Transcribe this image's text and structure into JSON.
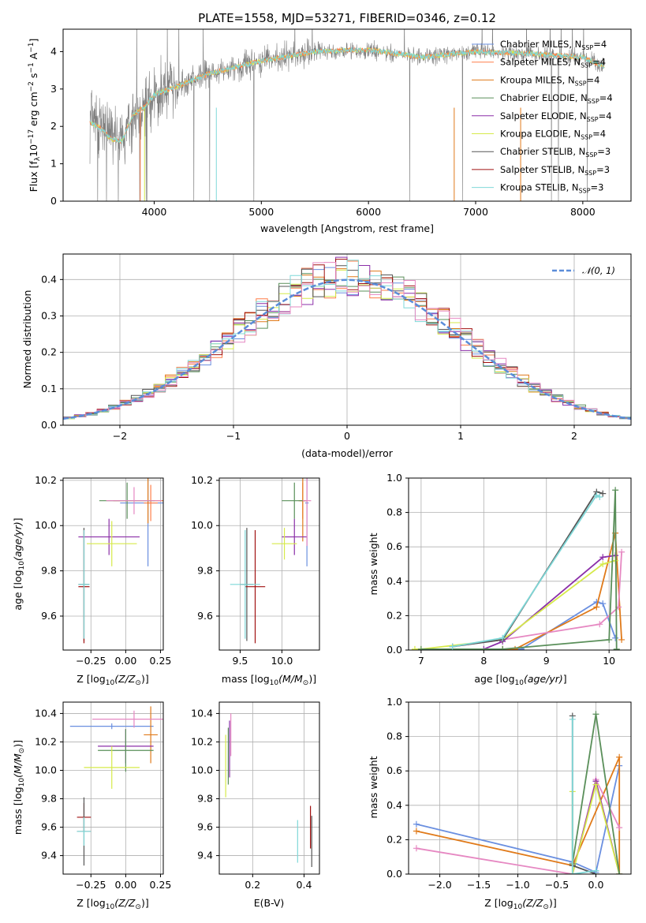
{
  "title": "PLATE=1558, MJD=53271, FIBERID=0346, z=0.12",
  "colors": {
    "chabrier_miles": "#6a8fe0",
    "salpeter_miles": "#ff7f4a",
    "kroupa_miles": "#e07a1a",
    "chabrier_elodie": "#5a8f5a",
    "salpeter_elodie": "#8b2fa8",
    "kroupa_elodie": "#d6ea4a",
    "chabrier_stelib": "#555555",
    "salpeter_stelib": "#a01010",
    "kroupa_stelib": "#7fd8d8",
    "pink": "#e688c2",
    "data_grey": "#808080",
    "normal_curve": "#5b8dd9"
  },
  "legend": [
    {
      "label": "Chabrier MILES, N",
      "sub": "SSP",
      "tail": "=4",
      "color": "chabrier_miles"
    },
    {
      "label": "Salpeter MILES, N",
      "sub": "SSP",
      "tail": "=4",
      "color": "salpeter_miles"
    },
    {
      "label": "Kroupa MILES, N",
      "sub": "SSP",
      "tail": "=4",
      "color": "kroupa_miles"
    },
    {
      "label": "Chabrier ELODIE, N",
      "sub": "SSP",
      "tail": "=4",
      "color": "chabrier_elodie"
    },
    {
      "label": "Salpeter ELODIE, N",
      "sub": "SSP",
      "tail": "=4",
      "color": "salpeter_elodie"
    },
    {
      "label": "Kroupa ELODIE, N",
      "sub": "SSP",
      "tail": "=4",
      "color": "kroupa_elodie"
    },
    {
      "label": "Chabrier STELIB, N",
      "sub": "SSP",
      "tail": "=3",
      "color": "chabrier_stelib"
    },
    {
      "label": "Salpeter STELIB, N",
      "sub": "SSP",
      "tail": "=3",
      "color": "salpeter_stelib"
    },
    {
      "label": "Kroupa STELIB, N",
      "sub": "SSP",
      "tail": "=3",
      "color": "kroupa_stelib"
    }
  ],
  "chart_data": [
    {
      "id": "spectrum",
      "type": "line",
      "xlabel": "wavelength [Angstrom, rest frame]",
      "ylabel_main": "Flux [f",
      "ylabel_sub": "λ",
      "ylabel_rest": "10",
      "ylabel_sup": "−17",
      "ylabel_units": "erg cm",
      "xlim": [
        3150,
        8450
      ],
      "ylim": [
        0,
        4.6
      ],
      "xticks": [
        4000,
        5000,
        6000,
        7000,
        8000
      ],
      "yticks": [
        0,
        1,
        2,
        3,
        4
      ],
      "continuum": {
        "x": [
          3400,
          3500,
          3600,
          3700,
          3800,
          3900,
          4000,
          4200,
          4500,
          5000,
          5500,
          6000,
          6500,
          7000,
          7500,
          8000,
          8200
        ],
        "y": [
          2.1,
          1.95,
          1.65,
          1.6,
          2.3,
          2.5,
          2.85,
          3.05,
          3.4,
          3.75,
          4.0,
          4.05,
          3.85,
          4.0,
          3.95,
          3.85,
          3.6
        ]
      }
    },
    {
      "id": "residuals",
      "type": "step",
      "xlabel": "(data-model)/error",
      "ylabel": "Normed distribution",
      "legend": "𝒩(0, 1)",
      "xlim": [
        -2.5,
        2.5
      ],
      "ylim": [
        0,
        0.47
      ],
      "xticks": [
        -2,
        -1,
        0,
        1,
        2
      ],
      "yticks": [
        0.0,
        0.1,
        0.2,
        0.3,
        0.4
      ],
      "bin_width": 0.1
    },
    {
      "id": "age_vs_Z",
      "type": "errorbar",
      "xlabel": "Z [log",
      "ylabel": "age  [log",
      "xlim": [
        -0.45,
        0.27
      ],
      "ylim": [
        9.45,
        10.21
      ],
      "xticks": [
        -0.25,
        0.0,
        0.25
      ],
      "yticks": [
        9.6,
        9.8,
        10.0,
        10.2
      ],
      "points": [
        {
          "color": "chabrier_miles",
          "x": 0.16,
          "y": 10.1,
          "xerr": 0.2,
          "yerr": 0.28
        },
        {
          "color": "salpeter_miles",
          "x": 0.18,
          "y": 10.1,
          "xerr": 0.05,
          "yerr": 0.08
        },
        {
          "color": "kroupa_miles",
          "x": 0.16,
          "y": 10.11,
          "xerr": 0.25,
          "yerr": 0.1
        },
        {
          "color": "chabrier_elodie",
          "x": 0.01,
          "y": 10.11,
          "xerr": 0.2,
          "yerr": 0.08
        },
        {
          "color": "salpeter_elodie",
          "x": -0.12,
          "y": 9.95,
          "xerr": 0.22,
          "yerr": 0.08
        },
        {
          "color": "kroupa_elodie",
          "x": -0.1,
          "y": 9.92,
          "xerr": 0.18,
          "yerr": 0.1
        },
        {
          "color": "chabrier_stelib",
          "x": -0.3,
          "y": 9.74,
          "xerr": 0.04,
          "yerr": 0.25
        },
        {
          "color": "salpeter_stelib",
          "x": -0.3,
          "y": 9.73,
          "xerr": 0.04,
          "yerr": 0.25
        },
        {
          "color": "kroupa_stelib",
          "x": -0.3,
          "y": 9.74,
          "xerr": 0.04,
          "yerr": 0.24
        },
        {
          "color": "pink",
          "x": 0.06,
          "y": 10.11,
          "xerr": 0.2,
          "yerr": 0.06
        }
      ]
    },
    {
      "id": "age_vs_mass",
      "type": "errorbar",
      "xlabel": "mass [log",
      "ylabel": "",
      "xlim": [
        9.25,
        10.45
      ],
      "ylim": [
        9.45,
        10.21
      ],
      "xticks": [
        9.5,
        10.0
      ],
      "yticks": [
        9.6,
        9.8,
        10.0,
        10.2
      ],
      "points": [
        {
          "color": "chabrier_miles",
          "x": 10.3,
          "y": 10.1,
          "xerr": 0.02,
          "yerr": 0.28
        },
        {
          "color": "salpeter_miles",
          "x": 10.25,
          "y": 10.11,
          "xerr": 0.03,
          "yerr": 0.08
        },
        {
          "color": "kroupa_miles",
          "x": 10.25,
          "y": 10.11,
          "xerr": 0.05,
          "yerr": 0.18
        },
        {
          "color": "chabrier_elodie",
          "x": 10.15,
          "y": 10.11,
          "xerr": 0.15,
          "yerr": 0.08
        },
        {
          "color": "salpeter_elodie",
          "x": 10.15,
          "y": 9.95,
          "xerr": 0.15,
          "yerr": 0.08
        },
        {
          "color": "kroupa_elodie",
          "x": 10.03,
          "y": 9.92,
          "xerr": 0.15,
          "yerr": 0.07
        },
        {
          "color": "chabrier_stelib",
          "x": 9.58,
          "y": 9.74,
          "xerr": 0.08,
          "yerr": 0.25
        },
        {
          "color": "salpeter_stelib",
          "x": 9.68,
          "y": 9.73,
          "xerr": 0.12,
          "yerr": 0.25
        },
        {
          "color": "kroupa_stelib",
          "x": 9.56,
          "y": 9.74,
          "xerr": 0.18,
          "yerr": 0.24
        },
        {
          "color": "pink",
          "x": 10.3,
          "y": 10.11,
          "xerr": 0.05,
          "yerr": 0.2
        }
      ]
    },
    {
      "id": "massweight_vs_age",
      "type": "line",
      "xlabel": "age  [log",
      "ylabel": "mass weight",
      "xlim": [
        6.8,
        10.35
      ],
      "ylim": [
        0,
        1.0
      ],
      "xticks": [
        7,
        8,
        9,
        10
      ],
      "yticks": [
        0.0,
        0.2,
        0.4,
        0.6,
        0.8,
        1.0
      ],
      "series": [
        {
          "color": "chabrier_miles",
          "x": [
            8.3,
            8.6,
            9.8,
            9.9,
            10.1
          ],
          "y": [
            0.005,
            0.005,
            0.28,
            0.27,
            0.07
          ]
        },
        {
          "color": "kroupa_miles",
          "x": [
            8.3,
            8.5,
            9.8,
            10.1,
            10.2
          ],
          "y": [
            0.005,
            0.005,
            0.25,
            0.68,
            0.06
          ]
        },
        {
          "color": "pink",
          "x": [
            7.5,
            8.3,
            9.85,
            10.15,
            10.2
          ],
          "y": [
            0.02,
            0.06,
            0.15,
            0.25,
            0.57
          ]
        },
        {
          "color": "salpeter_elodie",
          "x": [
            8.0,
            8.3,
            9.9,
            10.1
          ],
          "y": [
            0.005,
            0.05,
            0.54,
            0.55
          ]
        },
        {
          "color": "kroupa_elodie",
          "x": [
            6.9,
            7.0,
            8.3,
            9.9,
            10.1
          ],
          "y": [
            0.005,
            0.005,
            0.06,
            0.5,
            0.52
          ]
        },
        {
          "color": "chabrier_elodie",
          "x": [
            7.0,
            8.3,
            10.0,
            10.1,
            10.12
          ],
          "y": [
            0.005,
            0.005,
            0.06,
            0.93,
            0.005
          ]
        },
        {
          "color": "chabrier_stelib",
          "x": [
            7.5,
            8.3,
            9.8,
            9.9
          ],
          "y": [
            0.02,
            0.06,
            0.92,
            0.91
          ]
        },
        {
          "color": "kroupa_stelib",
          "x": [
            7.5,
            8.3,
            9.8,
            9.85
          ],
          "y": [
            0.02,
            0.07,
            0.9,
            0.89
          ]
        }
      ]
    },
    {
      "id": "mass_vs_Z",
      "type": "errorbar",
      "xlabel": "Z [log",
      "ylabel": "mass [log",
      "xlim": [
        -0.45,
        0.27
      ],
      "ylim": [
        9.27,
        10.48
      ],
      "xticks": [
        -0.25,
        0.0,
        0.25
      ],
      "yticks": [
        9.4,
        9.6,
        9.8,
        10.0,
        10.2,
        10.4
      ],
      "points": [
        {
          "color": "chabrier_miles",
          "x": -0.1,
          "y": 10.31,
          "xerr": 0.3,
          "yerr": 0.02
        },
        {
          "color": "kroupa_miles",
          "x": 0.18,
          "y": 10.25,
          "xerr": 0.05,
          "yerr": 0.2
        },
        {
          "color": "pink",
          "x": 0.06,
          "y": 10.36,
          "xerr": 0.3,
          "yerr": 0.06
        },
        {
          "color": "salpeter_elodie",
          "x": 0.0,
          "y": 10.17,
          "xerr": 0.2,
          "yerr": 0.12
        },
        {
          "color": "chabrier_elodie",
          "x": 0.0,
          "y": 10.14,
          "xerr": 0.2,
          "yerr": 0.15
        },
        {
          "color": "kroupa_elodie",
          "x": -0.1,
          "y": 10.02,
          "xerr": 0.2,
          "yerr": 0.15
        },
        {
          "color": "salpeter_stelib",
          "x": -0.3,
          "y": 9.67,
          "xerr": 0.05,
          "yerr": 0.1
        },
        {
          "color": "chabrier_stelib",
          "x": -0.3,
          "y": 9.57,
          "xerr": 0.05,
          "yerr": 0.24
        },
        {
          "color": "kroupa_stelib",
          "x": -0.3,
          "y": 9.57,
          "xerr": 0.05,
          "yerr": 0.1
        }
      ]
    },
    {
      "id": "mass_vs_ebv",
      "type": "errorbar",
      "xlabel": "E(B-V)",
      "ylabel": "",
      "xlim": [
        0.07,
        0.46
      ],
      "ylim": [
        9.27,
        10.48
      ],
      "xticks": [
        0.2,
        0.4
      ],
      "yticks": [
        9.4,
        9.6,
        9.8,
        10.0,
        10.2,
        10.4
      ],
      "points": [
        {
          "color": "kroupa_elodie",
          "x": 0.095,
          "y": 10.03,
          "xerr": 0.0,
          "yerr": 0.22
        },
        {
          "color": "chabrier_elodie",
          "x": 0.105,
          "y": 10.1,
          "xerr": 0.0,
          "yerr": 0.2
        },
        {
          "color": "salpeter_elodie",
          "x": 0.11,
          "y": 10.15,
          "xerr": 0.0,
          "yerr": 0.2
        },
        {
          "color": "pink",
          "x": 0.115,
          "y": 10.25,
          "xerr": 0.0,
          "yerr": 0.15
        },
        {
          "color": "kroupa_stelib",
          "x": 0.375,
          "y": 9.5,
          "xerr": 0.0,
          "yerr": 0.15
        },
        {
          "color": "salpeter_stelib",
          "x": 0.425,
          "y": 9.6,
          "xerr": 0.0,
          "yerr": 0.15
        },
        {
          "color": "chabrier_stelib",
          "x": 0.43,
          "y": 9.5,
          "xerr": 0.0,
          "yerr": 0.18
        }
      ]
    },
    {
      "id": "massweight_vs_Z",
      "type": "line",
      "xlabel": "Z [log",
      "ylabel": "mass weight",
      "xlim": [
        -2.4,
        0.45
      ],
      "ylim": [
        0,
        1.0
      ],
      "xticks": [
        -2.0,
        -1.5,
        -1.0,
        -0.5,
        0.0
      ],
      "yticks": [
        0.0,
        0.2,
        0.4,
        0.6,
        0.8,
        1.0
      ],
      "series": [
        {
          "color": "chabrier_miles",
          "x": [
            -2.3,
            -0.3,
            0.0,
            0.3
          ],
          "y": [
            0.29,
            0.07,
            0.01,
            0.63
          ]
        },
        {
          "color": "kroupa_miles",
          "x": [
            -2.3,
            -0.3,
            0.3,
            0.3
          ],
          "y": [
            0.25,
            0.05,
            0.68,
            0.0
          ]
        },
        {
          "color": "pink",
          "x": [
            -2.3,
            -0.3,
            0.0,
            0.3
          ],
          "y": [
            0.15,
            0.0,
            0.55,
            0.27
          ]
        },
        {
          "color": "salpeter_elodie",
          "x": [
            -0.3,
            0.0,
            0.3
          ],
          "y": [
            0.0,
            0.54,
            0.0
          ]
        },
        {
          "color": "kroupa_elodie",
          "x": [
            -0.3,
            -0.3,
            0.0,
            0.3
          ],
          "y": [
            0.48,
            0.0,
            0.52,
            0.0
          ]
        },
        {
          "color": "chabrier_elodie",
          "x": [
            -0.3,
            0.0,
            0.3
          ],
          "y": [
            0.06,
            0.93,
            0.0
          ]
        },
        {
          "color": "chabrier_stelib",
          "x": [
            -0.3,
            -0.3,
            0.0
          ],
          "y": [
            0.92,
            0.05,
            0.0
          ]
        },
        {
          "color": "kroupa_stelib",
          "x": [
            -0.3,
            -0.3,
            0.0
          ],
          "y": [
            0.9,
            0.0,
            0.02
          ]
        }
      ]
    }
  ]
}
